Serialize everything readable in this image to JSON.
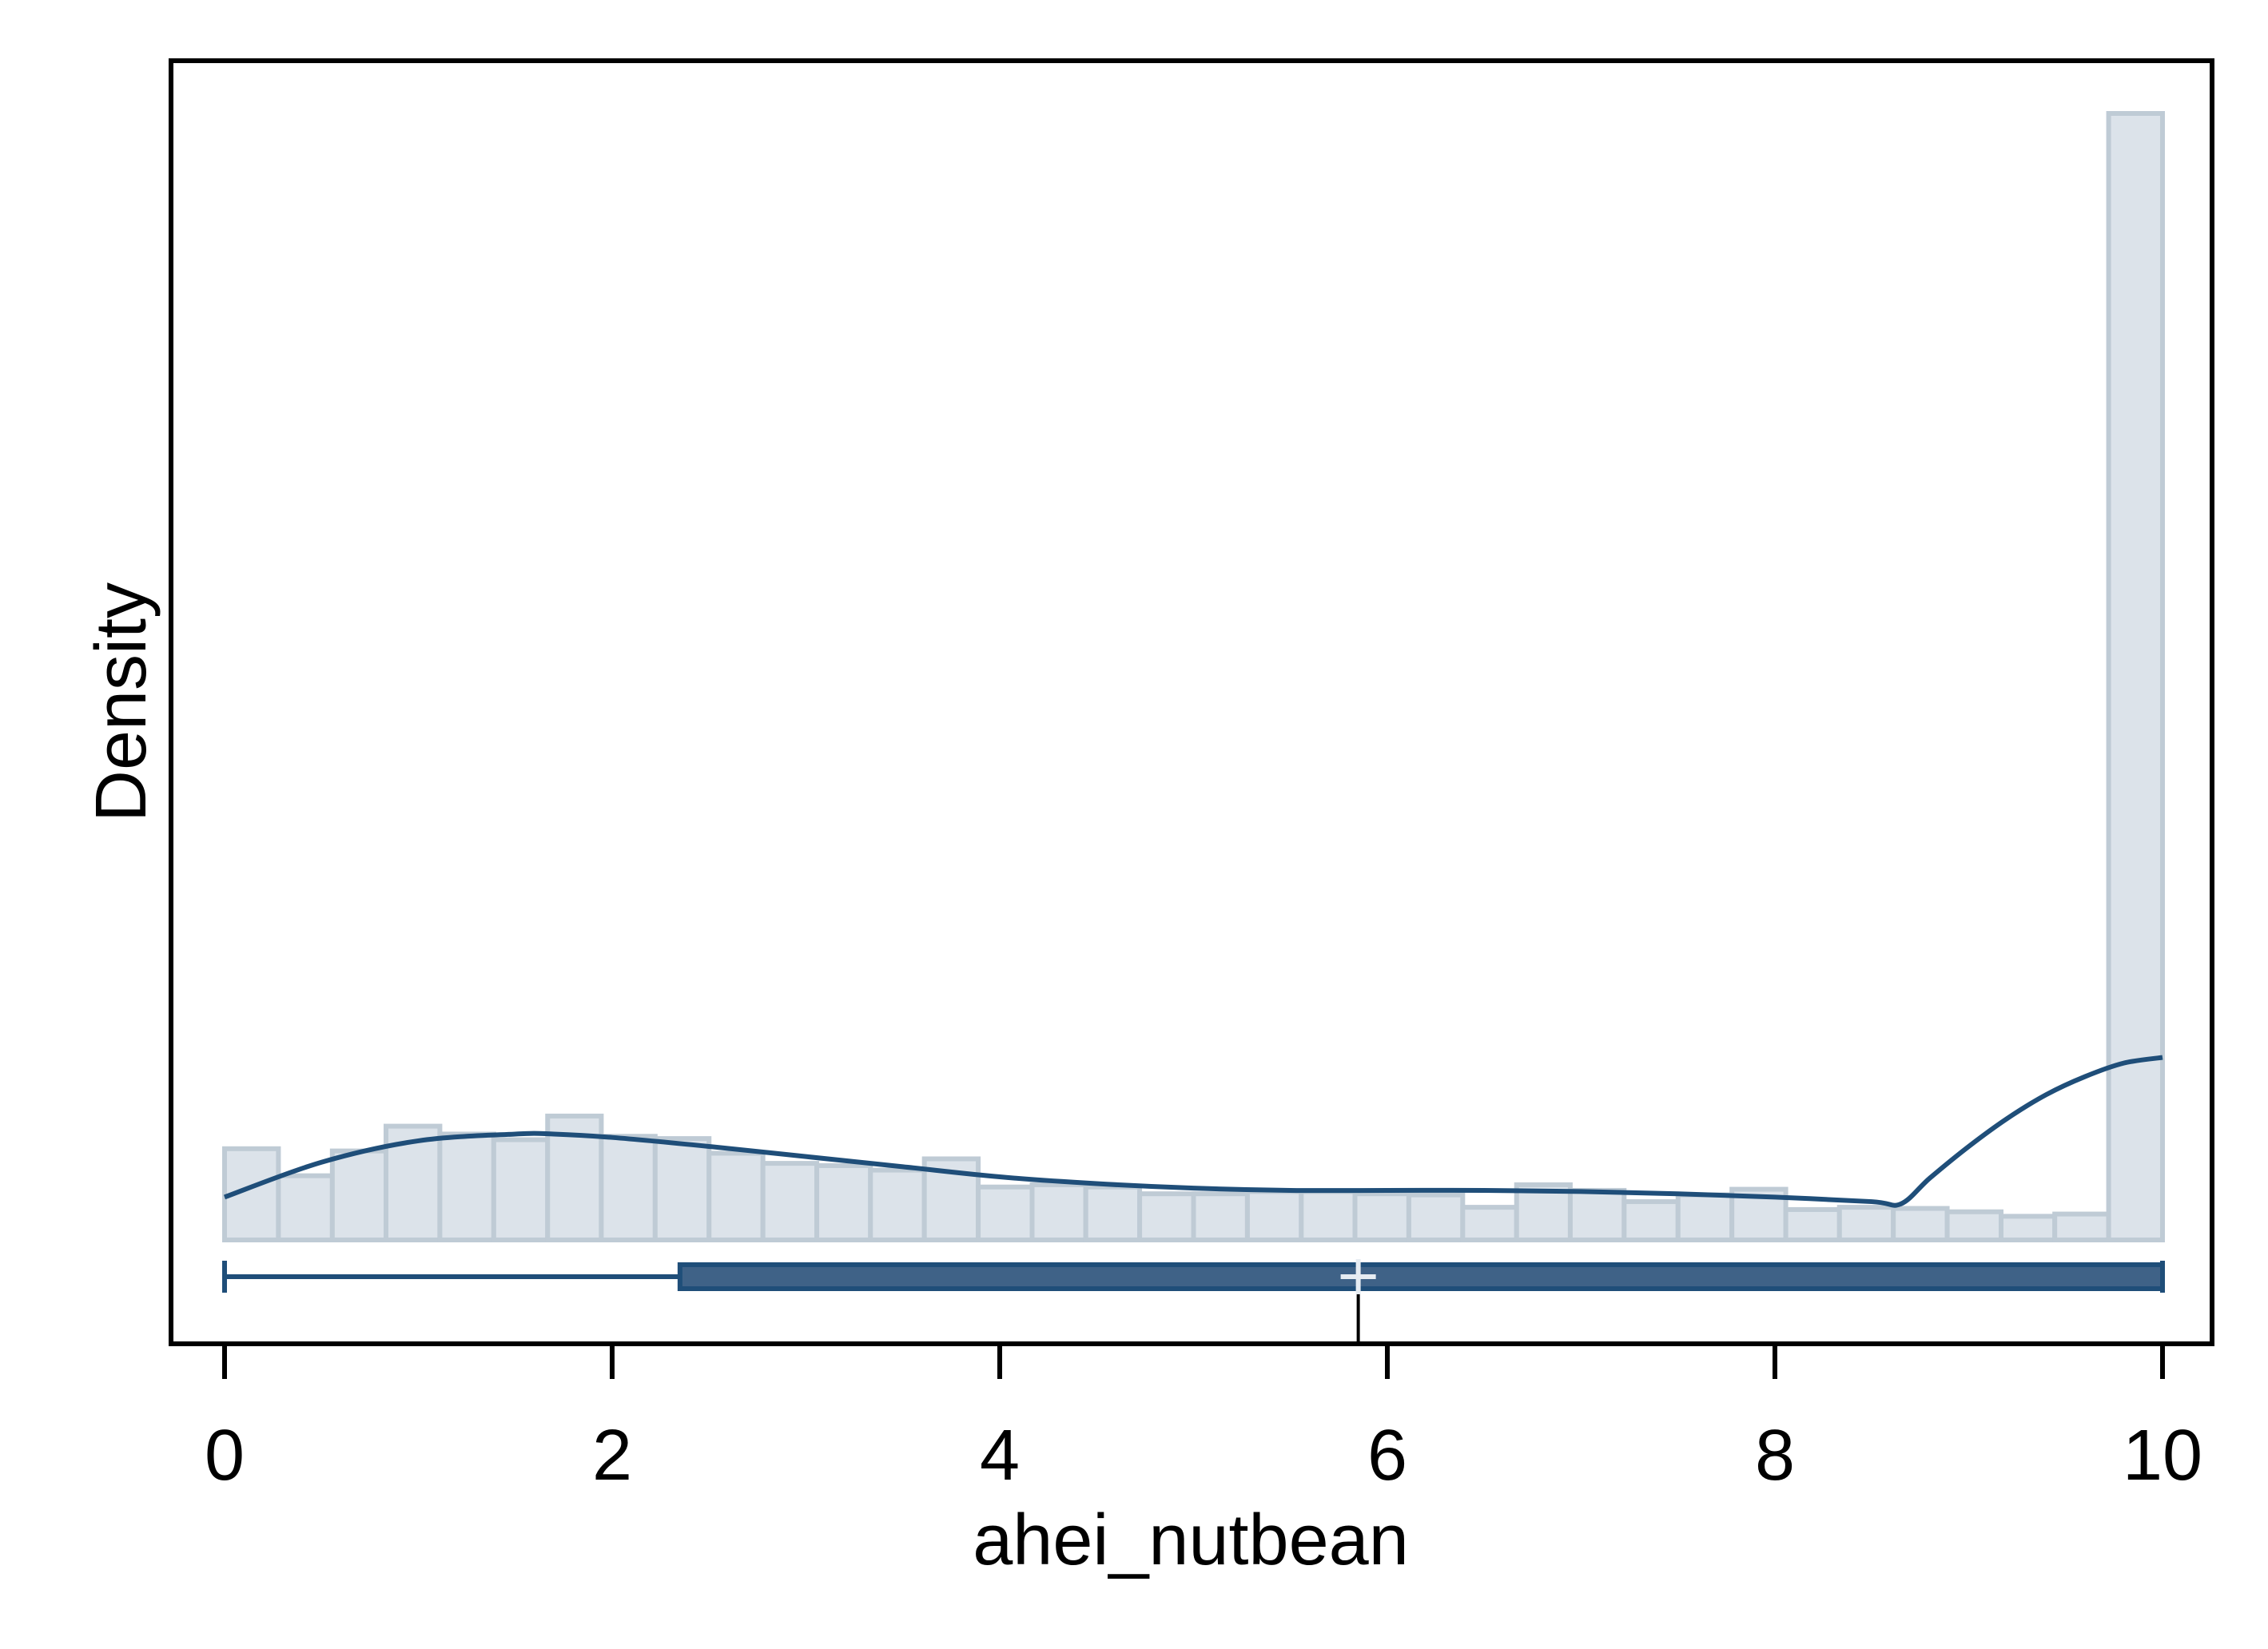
{
  "chart_data": {
    "type": "histogram",
    "xlabel": "ahei_nutbean",
    "ylabel": "Density",
    "xlim": [
      0,
      10
    ],
    "x_ticks": [
      "0",
      "2",
      "4",
      "6",
      "8",
      "10"
    ],
    "y_ticks": [],
    "grid": false,
    "histogram": {
      "bin_edges": [
        0,
        0.278,
        0.556,
        0.833,
        1.111,
        1.389,
        1.667,
        1.944,
        2.222,
        2.5,
        2.778,
        3.056,
        3.333,
        3.611,
        3.889,
        4.167,
        4.444,
        4.722,
        5.0,
        5.278,
        5.556,
        5.833,
        6.111,
        6.389,
        6.667,
        6.944,
        7.222,
        7.5,
        7.778,
        8.056,
        8.333,
        8.611,
        8.889,
        9.167,
        9.444,
        9.722,
        10.0
      ],
      "densities": [
        0.081,
        0.057,
        0.079,
        0.101,
        0.094,
        0.089,
        0.11,
        0.092,
        0.09,
        0.077,
        0.068,
        0.066,
        0.062,
        0.072,
        0.047,
        0.049,
        0.047,
        0.041,
        0.041,
        0.043,
        0.043,
        0.041,
        0.04,
        0.029,
        0.049,
        0.044,
        0.034,
        0.04,
        0.045,
        0.027,
        0.029,
        0.028,
        0.025,
        0.021,
        0.023,
        1.0
      ]
    },
    "kde": {
      "x": [
        0.0,
        0.5,
        1.0,
        1.5,
        1.7,
        2.0,
        2.5,
        3.0,
        3.5,
        4.0,
        4.5,
        5.0,
        5.5,
        6.0,
        6.5,
        7.0,
        7.5,
        8.0,
        8.5,
        8.65,
        8.8,
        9.0,
        9.2,
        9.4,
        9.6,
        9.8,
        10.0
      ],
      "y": [
        0.038,
        0.069,
        0.088,
        0.094,
        0.094,
        0.091,
        0.083,
        0.074,
        0.065,
        0.056,
        0.05,
        0.046,
        0.044,
        0.044,
        0.044,
        0.043,
        0.041,
        0.038,
        0.034,
        0.032,
        0.055,
        0.083,
        0.108,
        0.129,
        0.145,
        0.157,
        0.162
      ]
    },
    "boxplot": {
      "min": 0.0,
      "q1": 2.35,
      "median": 10.0,
      "q3": 10.0,
      "max": 10.0,
      "mean": 5.85
    },
    "colors": {
      "bar_fill": "#dce3ea",
      "bar_stroke": "#bfcbd5",
      "kde_line": "#1f4e79",
      "box_fill": "#3f6287",
      "box_stroke": "#1f4e79",
      "whisker": "#1f4e79",
      "mean_marker": "#e6ecf2",
      "frame": "#000000"
    }
  }
}
